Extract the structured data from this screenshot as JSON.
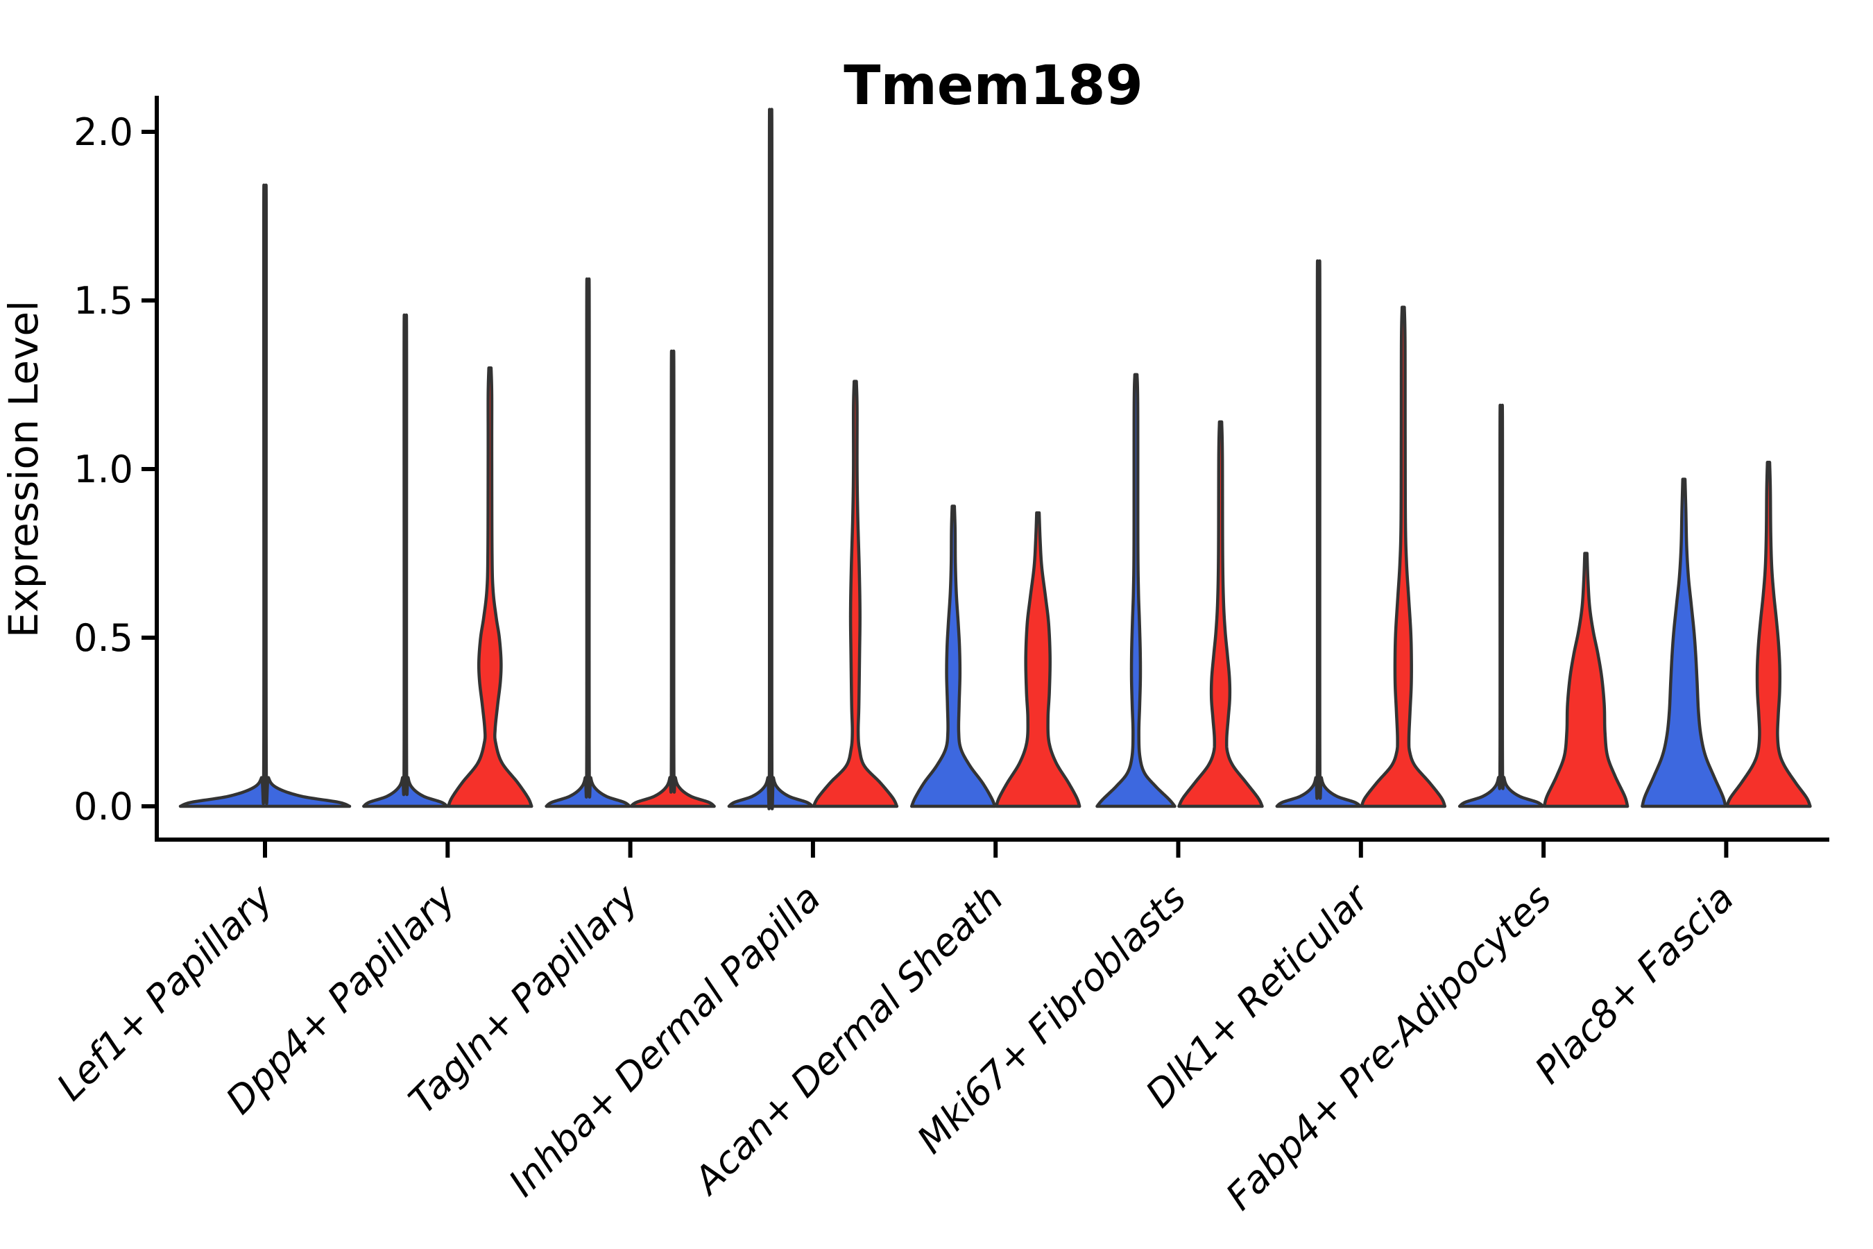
{
  "chart_data": {
    "type": "violin",
    "title": "Tmem189",
    "ylabel": "Expression Level",
    "xlabel": "",
    "grid": false,
    "legend_position": "none",
    "ytick_labels": [
      "0.0",
      "0.5",
      "1.0",
      "1.5",
      "2.0"
    ],
    "ytick_values": [
      0.0,
      0.5,
      1.0,
      1.5,
      2.0
    ],
    "ylim": [
      -0.1,
      2.1
    ],
    "colors": {
      "group_blue": "#3D68DF",
      "group_red": "#F5312A",
      "outline": "#333333",
      "axis": "#000000"
    },
    "categories": [
      {
        "label": "Lef1+ Papillary",
        "violins": [
          {
            "side": "center",
            "color_key": "group_blue",
            "shape": "collapsed_spike",
            "max_expression": 1.78,
            "profile": [
              [
                0,
                122
              ],
              [
                0.012,
                106
              ],
              [
                0.03,
                52
              ],
              [
                0.055,
                17
              ],
              [
                0.085,
                5
              ],
              [
                0.14,
                1.8
              ],
              [
                1.7,
                1.8
              ],
              [
                1.78,
                1.2
              ]
            ]
          }
        ]
      },
      {
        "label": "Dpp4+ Papillary",
        "violins": [
          {
            "side": "left",
            "color_key": "group_blue",
            "shape": "collapsed_spike",
            "max_expression": 1.42,
            "profile": [
              [
                0,
                60
              ],
              [
                0.012,
                52
              ],
              [
                0.03,
                26
              ],
              [
                0.055,
                10
              ],
              [
                0.085,
                4
              ],
              [
                0.14,
                1.8
              ],
              [
                1.34,
                1.8
              ],
              [
                1.42,
                1.2
              ]
            ]
          },
          {
            "side": "right",
            "color_key": "group_red",
            "shape": "violin",
            "max_expression": 1.3,
            "profile": [
              [
                0,
                60
              ],
              [
                0.025,
                55
              ],
              [
                0.07,
                40
              ],
              [
                0.13,
                17
              ],
              [
                0.19,
                8
              ],
              [
                0.23,
                7.5
              ],
              [
                0.3,
                11
              ],
              [
                0.37,
                15
              ],
              [
                0.43,
                16
              ],
              [
                0.5,
                13.5
              ],
              [
                0.56,
                9
              ],
              [
                0.64,
                4.5
              ],
              [
                0.75,
                3
              ],
              [
                1.05,
                2.6
              ],
              [
                1.22,
                2.6
              ],
              [
                1.3,
                1.6
              ]
            ]
          }
        ]
      },
      {
        "label": "Tagln+ Papillary",
        "violins": [
          {
            "side": "left",
            "color_key": "group_blue",
            "shape": "collapsed_spike",
            "max_expression": 1.52,
            "profile": [
              [
                0,
                60
              ],
              [
                0.012,
                52
              ],
              [
                0.03,
                26
              ],
              [
                0.055,
                10
              ],
              [
                0.085,
                4
              ],
              [
                0.14,
                1.8
              ],
              [
                1.44,
                1.8
              ],
              [
                1.52,
                1.2
              ]
            ]
          },
          {
            "side": "right",
            "color_key": "group_red",
            "shape": "collapsed_spike",
            "max_expression": 1.32,
            "profile": [
              [
                0,
                60
              ],
              [
                0.012,
                52
              ],
              [
                0.03,
                26
              ],
              [
                0.055,
                10
              ],
              [
                0.085,
                4
              ],
              [
                0.14,
                1.8
              ],
              [
                1.24,
                1.8
              ],
              [
                1.32,
                1.2
              ]
            ]
          }
        ]
      },
      {
        "label": "Inhba+ Dermal Papilla",
        "violins": [
          {
            "side": "left",
            "color_key": "group_blue",
            "shape": "collapsed_spike",
            "max_expression": 1.99,
            "profile": [
              [
                0,
                60
              ],
              [
                0.012,
                52
              ],
              [
                0.03,
                26
              ],
              [
                0.055,
                10
              ],
              [
                0.085,
                4
              ],
              [
                0.14,
                1.8
              ],
              [
                1.91,
                1.8
              ],
              [
                1.99,
                1.2
              ]
            ]
          },
          {
            "side": "right",
            "color_key": "group_red",
            "shape": "violin",
            "max_expression": 1.26,
            "profile": [
              [
                0,
                60
              ],
              [
                0.025,
                54
              ],
              [
                0.07,
                36
              ],
              [
                0.12,
                13
              ],
              [
                0.17,
                6
              ],
              [
                0.22,
                4.2
              ],
              [
                0.3,
                5.2
              ],
              [
                0.45,
                6.2
              ],
              [
                0.57,
                6.8
              ],
              [
                0.7,
                5.8
              ],
              [
                0.86,
                3.6
              ],
              [
                1.0,
                2.6
              ],
              [
                1.18,
                2.6
              ],
              [
                1.26,
                1.6
              ]
            ]
          }
        ]
      },
      {
        "label": "Acan+ Dermal Sheath",
        "violins": [
          {
            "side": "left",
            "color_key": "group_blue",
            "shape": "violin",
            "max_expression": 0.89,
            "profile": [
              [
                0,
                60
              ],
              [
                0.025,
                55
              ],
              [
                0.07,
                42
              ],
              [
                0.12,
                24
              ],
              [
                0.17,
                11
              ],
              [
                0.22,
                7.8
              ],
              [
                0.3,
                8.4
              ],
              [
                0.39,
                9.6
              ],
              [
                0.47,
                9.0
              ],
              [
                0.54,
                7.2
              ],
              [
                0.63,
                4.4
              ],
              [
                0.72,
                3.0
              ],
              [
                0.82,
                2.6
              ],
              [
                0.89,
                1.6
              ]
            ]
          },
          {
            "side": "right",
            "color_key": "group_red",
            "shape": "violin",
            "max_expression": 0.87,
            "profile": [
              [
                0,
                60
              ],
              [
                0.025,
                56
              ],
              [
                0.07,
                44
              ],
              [
                0.13,
                26
              ],
              [
                0.19,
                16
              ],
              [
                0.26,
                14.5
              ],
              [
                0.34,
                16.5
              ],
              [
                0.44,
                17.5
              ],
              [
                0.54,
                15.5
              ],
              [
                0.62,
                11
              ],
              [
                0.71,
                5.5
              ],
              [
                0.79,
                3.2
              ],
              [
                0.87,
                1.8
              ]
            ]
          }
        ]
      },
      {
        "label": "Mki67+ Fibroblasts",
        "violins": [
          {
            "side": "left",
            "color_key": "group_blue",
            "shape": "violin",
            "max_expression": 1.28,
            "profile": [
              [
                0,
                56
              ],
              [
                0.02,
                48
              ],
              [
                0.06,
                28
              ],
              [
                0.1,
                12
              ],
              [
                0.15,
                5.5
              ],
              [
                0.22,
                4.2
              ],
              [
                0.3,
                5.4
              ],
              [
                0.38,
                6.4
              ],
              [
                0.46,
                6.2
              ],
              [
                0.55,
                5.0
              ],
              [
                0.64,
                3.6
              ],
              [
                0.78,
                2.8
              ],
              [
                1.18,
                2.6
              ],
              [
                1.28,
                1.6
              ]
            ]
          },
          {
            "side": "right",
            "color_key": "group_red",
            "shape": "violin",
            "max_expression": 1.14,
            "profile": [
              [
                0,
                60
              ],
              [
                0.025,
                54
              ],
              [
                0.07,
                37
              ],
              [
                0.12,
                18
              ],
              [
                0.16,
                10
              ],
              [
                0.2,
                8.8
              ],
              [
                0.26,
                11
              ],
              [
                0.32,
                13.2
              ],
              [
                0.38,
                12.8
              ],
              [
                0.45,
                9.8
              ],
              [
                0.52,
                6.6
              ],
              [
                0.61,
                4.2
              ],
              [
                0.75,
                3
              ],
              [
                1.04,
                2.6
              ],
              [
                1.14,
                1.6
              ]
            ]
          }
        ]
      },
      {
        "label": "Dlk1+ Reticular",
        "violins": [
          {
            "side": "left",
            "color_key": "group_blue",
            "shape": "collapsed_spike",
            "max_expression": 1.57,
            "profile": [
              [
                0,
                60
              ],
              [
                0.012,
                52
              ],
              [
                0.03,
                26
              ],
              [
                0.055,
                10
              ],
              [
                0.085,
                4
              ],
              [
                0.14,
                1.8
              ],
              [
                1.49,
                1.8
              ],
              [
                1.57,
                1.2
              ]
            ]
          },
          {
            "side": "right",
            "color_key": "group_red",
            "shape": "violin",
            "max_expression": 1.48,
            "profile": [
              [
                0,
                60
              ],
              [
                0.025,
                55
              ],
              [
                0.07,
                38
              ],
              [
                0.12,
                17
              ],
              [
                0.16,
                9.5
              ],
              [
                0.2,
                8.2
              ],
              [
                0.28,
                9.8
              ],
              [
                0.36,
                11.6
              ],
              [
                0.44,
                11.8
              ],
              [
                0.52,
                10.8
              ],
              [
                0.62,
                7.8
              ],
              [
                0.72,
                4.8
              ],
              [
                0.84,
                3.2
              ],
              [
                1.1,
                2.8
              ],
              [
                1.38,
                2.6
              ],
              [
                1.48,
                1.6
              ]
            ]
          }
        ]
      },
      {
        "label": "Fabp4+ Pre-Adipocytes",
        "violins": [
          {
            "side": "left",
            "color_key": "group_blue",
            "shape": "collapsed_spike",
            "max_expression": 1.17,
            "profile": [
              [
                0,
                60
              ],
              [
                0.012,
                52
              ],
              [
                0.03,
                26
              ],
              [
                0.055,
                10
              ],
              [
                0.085,
                4
              ],
              [
                0.14,
                1.8
              ],
              [
                1.09,
                1.8
              ],
              [
                1.17,
                1.2
              ]
            ]
          },
          {
            "side": "right",
            "color_key": "group_red",
            "shape": "violin",
            "max_expression": 0.75,
            "profile": [
              [
                0,
                60
              ],
              [
                0.03,
                56
              ],
              [
                0.09,
                42
              ],
              [
                0.15,
                31
              ],
              [
                0.22,
                27.5
              ],
              [
                0.3,
                26.5
              ],
              [
                0.38,
                23
              ],
              [
                0.45,
                17.5
              ],
              [
                0.52,
                10.5
              ],
              [
                0.59,
                5.5
              ],
              [
                0.67,
                3
              ],
              [
                0.75,
                1.6
              ]
            ]
          }
        ]
      },
      {
        "label": "Plac8+ Fascia",
        "violins": [
          {
            "side": "left",
            "color_key": "group_blue",
            "shape": "violin",
            "max_expression": 0.97,
            "profile": [
              [
                0,
                60
              ],
              [
                0.03,
                56
              ],
              [
                0.09,
                43
              ],
              [
                0.15,
                31
              ],
              [
                0.21,
                24.5
              ],
              [
                0.28,
                21
              ],
              [
                0.37,
                19
              ],
              [
                0.45,
                17
              ],
              [
                0.52,
                14.5
              ],
              [
                0.6,
                10.5
              ],
              [
                0.68,
                6.5
              ],
              [
                0.77,
                4
              ],
              [
                0.88,
                2.8
              ],
              [
                0.97,
                1.6
              ]
            ]
          },
          {
            "side": "right",
            "color_key": "group_red",
            "shape": "violin",
            "max_expression": 1.02,
            "profile": [
              [
                0,
                60
              ],
              [
                0.025,
                55
              ],
              [
                0.07,
                39
              ],
              [
                0.12,
                23
              ],
              [
                0.16,
                15.5
              ],
              [
                0.21,
                13
              ],
              [
                0.27,
                14
              ],
              [
                0.34,
                16
              ],
              [
                0.41,
                16.2
              ],
              [
                0.48,
                14.5
              ],
              [
                0.55,
                11.5
              ],
              [
                0.63,
                7.5
              ],
              [
                0.71,
                4.6
              ],
              [
                0.81,
                3.2
              ],
              [
                0.94,
                2.6
              ],
              [
                1.02,
                1.6
              ]
            ]
          }
        ]
      }
    ]
  }
}
